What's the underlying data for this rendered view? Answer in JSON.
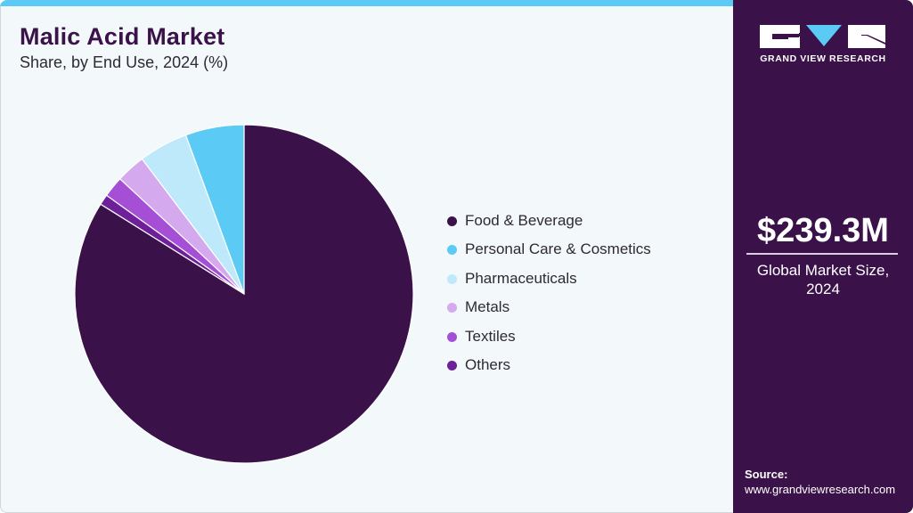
{
  "header": {
    "title": "Malic Acid Market",
    "subtitle": "Share, by End Use, 2024 (%)"
  },
  "colors": {
    "accent_bar": "#5bcbf5",
    "side_panel": "#3a1148",
    "background": "#f3f8fb"
  },
  "legend": {
    "items": [
      {
        "label": "Food & Beverage",
        "color": "#3a1148"
      },
      {
        "label": "Personal Care & Cosmetics",
        "color": "#5bcbf5"
      },
      {
        "label": "Pharmaceuticals",
        "color": "#bde9fa"
      },
      {
        "label": "Metals",
        "color": "#d4a9ed"
      },
      {
        "label": "Textiles",
        "color": "#a44fd6"
      },
      {
        "label": "Others",
        "color": "#6e1f9a"
      }
    ]
  },
  "side_panel": {
    "logo_text": "GRAND VIEW RESEARCH",
    "logo_icon": "gvr-logo-icon",
    "market_value": "$239.3M",
    "market_label_line1": "Global Market Size,",
    "market_label_line2": "2024",
    "source_label": "Source:",
    "source_url": "www.grandviewresearch.com"
  },
  "chart_data": {
    "type": "pie",
    "title": "Malic Acid Market",
    "subtitle": "Share, by End Use, 2024 (%)",
    "categories": [
      "Food & Beverage",
      "Personal Care & Cosmetics",
      "Pharmaceuticals",
      "Metals",
      "Textiles",
      "Others"
    ],
    "values": [
      83.9,
      5.6,
      4.7,
      2.8,
      2.0,
      1.0
    ],
    "colors": [
      "#3a1148",
      "#5bcbf5",
      "#bde9fa",
      "#d4a9ed",
      "#a44fd6",
      "#6e1f9a"
    ],
    "start_angle": "12 o'clock",
    "direction": "clockwise for Food & Beverage, remaining slices counterclockwise from top",
    "legend_position": "right",
    "annotation": "$239.3M Global Market Size, 2024"
  }
}
